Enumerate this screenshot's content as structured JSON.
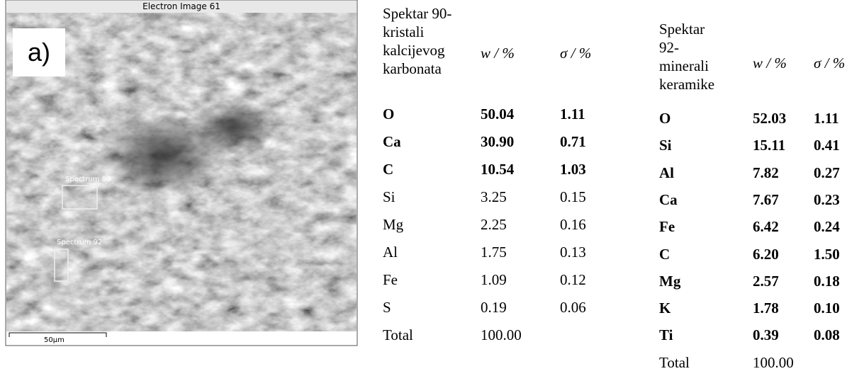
{
  "image": {
    "title": "Electron Image 61",
    "panel_label": "a)",
    "spectrum_labels": [
      "Spectrum 90",
      "Spectrum 92"
    ],
    "scale_bar": "50µm"
  },
  "tables": [
    {
      "header": [
        "Spektar 90-kristali kalcijevog karbonata",
        "w / %",
        "σ / %"
      ],
      "bold_rows": 3,
      "rows": [
        [
          "O",
          "50.04",
          "1.11"
        ],
        [
          "Ca",
          "30.90",
          "0.71"
        ],
        [
          "C",
          "10.54",
          "1.03"
        ],
        [
          "Si",
          "3.25",
          "0.15"
        ],
        [
          "Mg",
          "2.25",
          "0.16"
        ],
        [
          "Al",
          "1.75",
          "0.13"
        ],
        [
          "Fe",
          "1.09",
          "0.12"
        ],
        [
          "S",
          "0.19",
          "0.06"
        ],
        [
          "Total",
          "100.00"
        ]
      ]
    },
    {
      "header": [
        "Spektar 92-minerali keramike",
        "w / %",
        "σ / %"
      ],
      "bold_rows": 9,
      "rows": [
        [
          "O",
          "52.03",
          "1.11"
        ],
        [
          "Si",
          "15.11",
          "0.41"
        ],
        [
          "Al",
          "7.82",
          "0.27"
        ],
        [
          "Ca",
          "7.67",
          "0.23"
        ],
        [
          "Fe",
          "6.42",
          "0.24"
        ],
        [
          "C",
          "6.20",
          "1.50"
        ],
        [
          "Mg",
          "2.57",
          "0.18"
        ],
        [
          "K",
          "1.78",
          "0.10"
        ],
        [
          "Ti",
          "0.39",
          "0.08"
        ],
        [
          "Total",
          "100.00"
        ]
      ]
    }
  ]
}
